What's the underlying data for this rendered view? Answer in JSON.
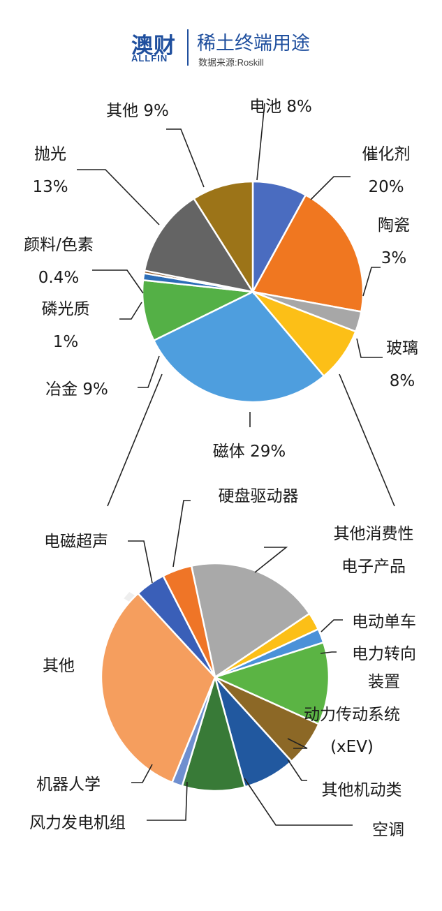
{
  "header": {
    "logo_cn": "澳财",
    "logo_en": "ALLFIN",
    "title": "稀土终端用途",
    "source": "数据来源:Roskill"
  },
  "watermark": {
    "cn": "澳财",
    "en": "ALLFIN"
  },
  "chart_data": [
    {
      "type": "pie",
      "title": "稀土终端用途",
      "slices": [
        {
          "label": "电池",
          "value": 8,
          "pct_text": "8%",
          "color": "#4a6cc0"
        },
        {
          "label": "催化剂",
          "value": 20,
          "pct_text": "20%",
          "color": "#f07720"
        },
        {
          "label": "陶瓷",
          "value": 3,
          "pct_text": "3%",
          "color": "#a7a7a7"
        },
        {
          "label": "玻璃",
          "value": 8,
          "pct_text": "8%",
          "color": "#fcbf17"
        },
        {
          "label": "磁体",
          "value": 29,
          "pct_text": "29%",
          "color": "#4e9ede"
        },
        {
          "label": "冶金",
          "value": 9,
          "pct_text": "9%",
          "color": "#54b046"
        },
        {
          "label": "磷光质",
          "value": 1,
          "pct_text": "1%",
          "color": "#2c6db6"
        },
        {
          "label": "颜料/色素",
          "value": 0.4,
          "pct_text": "0.4%",
          "color": "#8a5526"
        },
        {
          "label": "抛光",
          "value": 13,
          "pct_text": "13%",
          "color": "#646464"
        },
        {
          "label": "其他",
          "value": 9,
          "pct_text": "9%",
          "color": "#9c7418"
        }
      ]
    },
    {
      "type": "pie",
      "title": "磁体",
      "slices": [
        {
          "label": "其他消费性电子产品",
          "value": 18.9,
          "color": "#a9a9a9"
        },
        {
          "label": "电动单车",
          "value": 2.5,
          "color": "#fcbf17"
        },
        {
          "label": "电力转向装置",
          "value": 2.0,
          "color": "#4a91d8"
        },
        {
          "label": "动力传动系统(xEV)",
          "value": 11.7,
          "color": "#5bb444"
        },
        {
          "label": "其他机动类",
          "value": 6.5,
          "color": "#8c6826"
        },
        {
          "label": "空调",
          "value": 7.5,
          "color": "#21589f"
        },
        {
          "label": "风力发电机组",
          "value": 8.9,
          "color": "#387a37"
        },
        {
          "label": "机器人学",
          "value": 1.5,
          "color": "#6f8fcf"
        },
        {
          "label": "其他",
          "value": 32.0,
          "color": "#f59e5e"
        },
        {
          "label": "电磁超声",
          "value": 4.3,
          "color": "#3a5fb8"
        },
        {
          "label": "硬盘驱动器",
          "value": 4.2,
          "color": "#ef7527"
        }
      ]
    }
  ],
  "labels_top": [
    {
      "lines": [
        "电池 8%"
      ]
    },
    {
      "lines": [
        "催化剂",
        "20%"
      ]
    },
    {
      "lines": [
        "陶瓷",
        "3%"
      ]
    },
    {
      "lines": [
        "玻璃",
        "8%"
      ]
    },
    {
      "lines": [
        "磁体 29%"
      ]
    },
    {
      "lines": [
        "冶金 9%"
      ]
    },
    {
      "lines": [
        "磷光质",
        "1%"
      ]
    },
    {
      "lines": [
        "颜料/色素",
        "0.4%"
      ]
    },
    {
      "lines": [
        "抛光",
        "13%"
      ]
    },
    {
      "lines": [
        "其他 9%"
      ]
    }
  ],
  "labels_bottom": [
    {
      "lines": [
        "其他消费性",
        "电子产品"
      ]
    },
    {
      "lines": [
        "电动单车"
      ]
    },
    {
      "lines": [
        "电力转向",
        "装置"
      ]
    },
    {
      "lines": [
        "动力传动系统",
        "(xEV)"
      ]
    },
    {
      "lines": [
        "其他机动类"
      ]
    },
    {
      "lines": [
        "空调"
      ]
    },
    {
      "lines": [
        "风力发电机组"
      ]
    },
    {
      "lines": [
        "机器人学"
      ]
    },
    {
      "lines": [
        "其他"
      ]
    },
    {
      "lines": [
        "电磁超声"
      ]
    },
    {
      "lines": [
        "硬盘驱动器"
      ]
    }
  ]
}
